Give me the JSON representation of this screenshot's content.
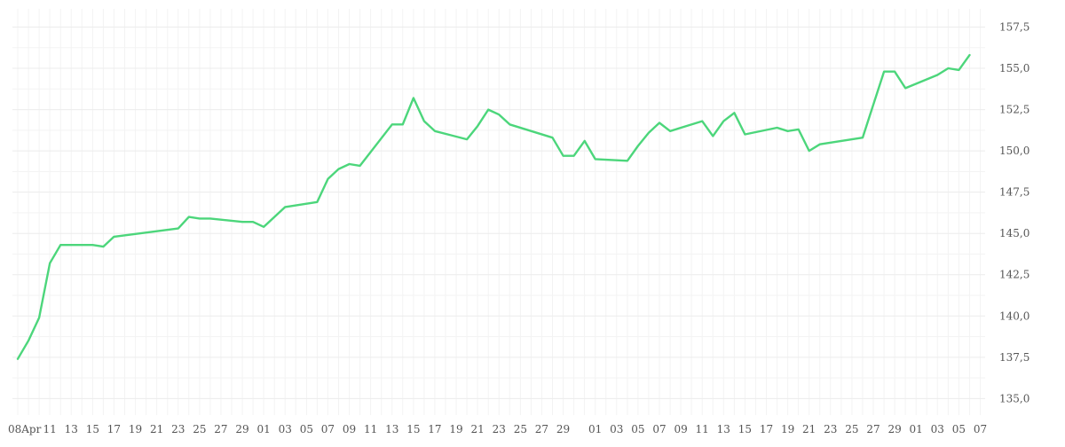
{
  "chart_data": {
    "type": "line",
    "title": "",
    "xlabel": "",
    "ylabel": "",
    "ylim": [
      134.0,
      158.6
    ],
    "y_ticks": [
      "135,0",
      "137,5",
      "140,0",
      "142,5",
      "145,0",
      "147,5",
      "150,0",
      "152,5",
      "155,0",
      "157,5"
    ],
    "y_tick_values": [
      135.0,
      137.5,
      140.0,
      142.5,
      145.0,
      147.5,
      150.0,
      152.5,
      155.0,
      157.5
    ],
    "y_axis_position": "right",
    "grid": true,
    "x_tick_labels": [
      "08Apr",
      "11",
      "13",
      "15",
      "17",
      "19",
      "21",
      "23",
      "25",
      "27",
      "29",
      "01",
      "03",
      "05",
      "07",
      "09",
      "11",
      "13",
      "15",
      "17",
      "19",
      "21",
      "23",
      "25",
      "27",
      "29",
      "01",
      "03",
      "05",
      "07",
      "09",
      "11",
      "13",
      "15",
      "17",
      "19",
      "21",
      "23",
      "25",
      "27",
      "29",
      "01",
      "03",
      "05",
      "07"
    ],
    "series": [
      {
        "color": "#4cd67b",
        "points": [
          [
            "Apr 08",
            137.4
          ],
          [
            "Apr 09",
            138.5
          ],
          [
            "Apr 10",
            139.9
          ],
          [
            "Apr 11",
            143.2
          ],
          [
            "Apr 12",
            144.3
          ],
          [
            "Apr 15",
            144.3
          ],
          [
            "Apr 16",
            144.2
          ],
          [
            "Apr 17",
            144.8
          ],
          [
            "Apr 23",
            145.3
          ],
          [
            "Apr 24",
            146.0
          ],
          [
            "Apr 25",
            145.9
          ],
          [
            "Apr 26",
            145.9
          ],
          [
            "Apr 29",
            145.7
          ],
          [
            "Apr 30",
            145.7
          ],
          [
            "May 01",
            145.4
          ],
          [
            "May 03",
            146.6
          ],
          [
            "May 06",
            146.9
          ],
          [
            "May 07",
            148.3
          ],
          [
            "May 08",
            148.9
          ],
          [
            "May 09",
            149.2
          ],
          [
            "May 10",
            149.1
          ],
          [
            "May 13",
            151.6
          ],
          [
            "May 14",
            151.6
          ],
          [
            "May 15",
            153.2
          ],
          [
            "May 16",
            151.8
          ],
          [
            "May 17",
            151.2
          ],
          [
            "May 20",
            150.7
          ],
          [
            "May 21",
            151.5
          ],
          [
            "May 22",
            152.5
          ],
          [
            "May 23",
            152.2
          ],
          [
            "May 24",
            151.6
          ],
          [
            "May 28",
            150.8
          ],
          [
            "May 29",
            149.7
          ],
          [
            "May 30",
            149.7
          ],
          [
            "May 31",
            150.6
          ],
          [
            "Jun 01",
            149.5
          ],
          [
            "Jun 04",
            149.4
          ],
          [
            "Jun 05",
            150.3
          ],
          [
            "Jun 06",
            151.1
          ],
          [
            "Jun 07",
            151.7
          ],
          [
            "Jun 08",
            151.2
          ],
          [
            "Jun 11",
            151.8
          ],
          [
            "Jun 12",
            150.9
          ],
          [
            "Jun 13",
            151.8
          ],
          [
            "Jun 14",
            152.3
          ],
          [
            "Jun 15",
            151.0
          ],
          [
            "Jun 18",
            151.4
          ],
          [
            "Jun 19",
            151.2
          ],
          [
            "Jun 20",
            151.3
          ],
          [
            "Jun 21",
            150.0
          ],
          [
            "Jun 22",
            150.4
          ],
          [
            "Jun 26",
            150.8
          ],
          [
            "Jun 28",
            154.8
          ],
          [
            "Jun 29",
            154.8
          ],
          [
            "Jun 30",
            153.8
          ],
          [
            "Jul 03",
            154.6
          ],
          [
            "Jul 04",
            155.0
          ],
          [
            "Jul 05",
            154.9
          ],
          [
            "Jul 06",
            155.8
          ]
        ]
      }
    ]
  }
}
